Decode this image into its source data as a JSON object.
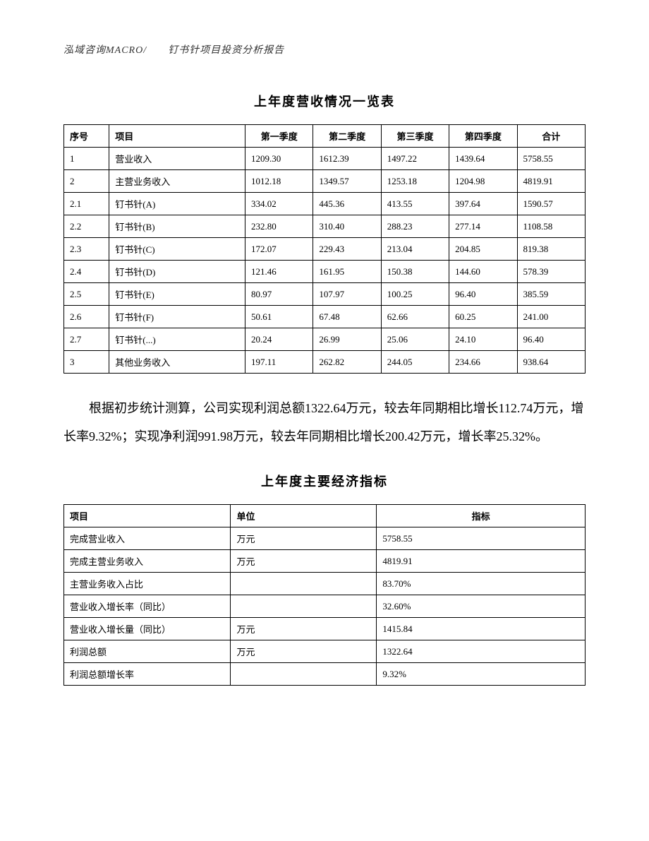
{
  "header": "泓域咨询MACRO/　　钉书针项目投资分析报告",
  "table1": {
    "title": "上年度营收情况一览表",
    "columns": [
      "序号",
      "项目",
      "第一季度",
      "第二季度",
      "第三季度",
      "第四季度",
      "合计"
    ],
    "rows": [
      [
        "1",
        "营业收入",
        "1209.30",
        "1612.39",
        "1497.22",
        "1439.64",
        "5758.55"
      ],
      [
        "2",
        "主营业务收入",
        "1012.18",
        "1349.57",
        "1253.18",
        "1204.98",
        "4819.91"
      ],
      [
        "2.1",
        "钉书针(A)",
        "334.02",
        "445.36",
        "413.55",
        "397.64",
        "1590.57"
      ],
      [
        "2.2",
        "钉书针(B)",
        "232.80",
        "310.40",
        "288.23",
        "277.14",
        "1108.58"
      ],
      [
        "2.3",
        "钉书针(C)",
        "172.07",
        "229.43",
        "213.04",
        "204.85",
        "819.38"
      ],
      [
        "2.4",
        "钉书针(D)",
        "121.46",
        "161.95",
        "150.38",
        "144.60",
        "578.39"
      ],
      [
        "2.5",
        "钉书针(E)",
        "80.97",
        "107.97",
        "100.25",
        "96.40",
        "385.59"
      ],
      [
        "2.6",
        "钉书针(F)",
        "50.61",
        "67.48",
        "62.66",
        "60.25",
        "241.00"
      ],
      [
        "2.7",
        "钉书针(...)",
        "20.24",
        "26.99",
        "25.06",
        "24.10",
        "96.40"
      ],
      [
        "3",
        "其他业务收入",
        "197.11",
        "262.82",
        "244.05",
        "234.66",
        "938.64"
      ]
    ]
  },
  "paragraph": "根据初步统计测算，公司实现利润总额1322.64万元，较去年同期相比增长112.74万元，增长率9.32%；实现净利润991.98万元，较去年同期相比增长200.42万元，增长率25.32%。",
  "table2": {
    "title": "上年度主要经济指标",
    "columns": [
      "项目",
      "单位",
      "指标"
    ],
    "rows": [
      [
        "完成营业收入",
        "万元",
        "5758.55"
      ],
      [
        "完成主营业务收入",
        "万元",
        "4819.91"
      ],
      [
        "主营业务收入占比",
        "",
        "83.70%"
      ],
      [
        "营业收入增长率（同比）",
        "",
        "32.60%"
      ],
      [
        "营业收入增长量（同比）",
        "万元",
        "1415.84"
      ],
      [
        "利润总额",
        "万元",
        "1322.64"
      ],
      [
        "利润总额增长率",
        "",
        "9.32%"
      ]
    ]
  }
}
